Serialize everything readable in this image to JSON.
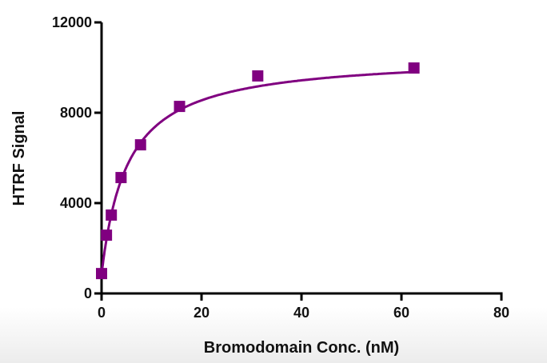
{
  "chart_data": {
    "type": "scatter",
    "title": "",
    "xlabel": "Bromodomain Conc. (nM)",
    "ylabel": "HTRF Signal",
    "xlim": [
      0,
      80
    ],
    "ylim": [
      0,
      12000
    ],
    "xticks": [
      "0",
      "20",
      "40",
      "60",
      "80"
    ],
    "yticks": [
      "0",
      "4000",
      "8000",
      "12000"
    ],
    "grid": false,
    "fit_curve": "saturation binding curve",
    "color": "#800080",
    "x": [
      0,
      0.98,
      1.95,
      3.9,
      7.8,
      15.6,
      31.25,
      62.5
    ],
    "y": [
      880,
      2580,
      3470,
      5130,
      6580,
      8280,
      9630,
      9980
    ]
  }
}
